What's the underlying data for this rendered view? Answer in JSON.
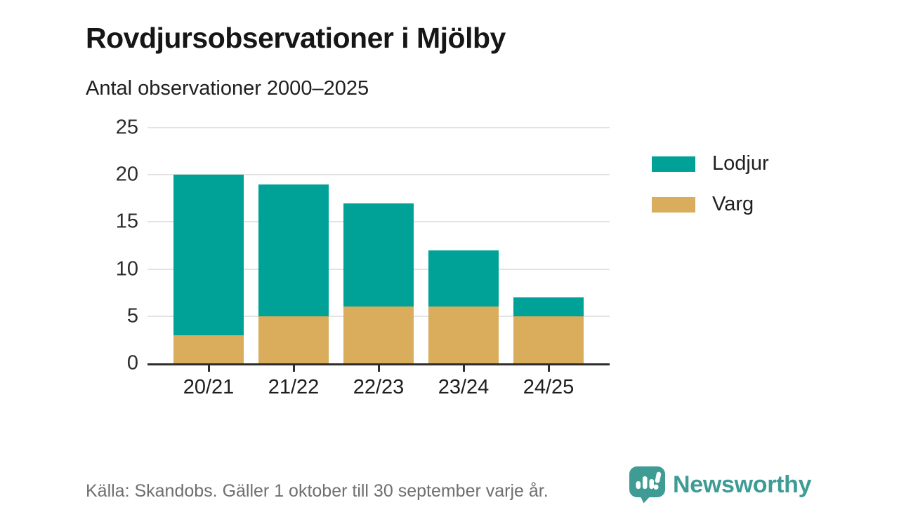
{
  "header": {
    "title": "Rovdjursobservationer i Mjölby",
    "subtitle": "Antal observationer 2000–2025"
  },
  "chart_data": {
    "type": "bar",
    "stacked": true,
    "title": "Rovdjursobservationer i Mjölby",
    "subtitle": "Antal observationer 2000–2025",
    "categories": [
      "20/21",
      "21/22",
      "22/23",
      "23/24",
      "24/25"
    ],
    "series": [
      {
        "name": "Lodjur",
        "color": "#00A298",
        "values": [
          17,
          14,
          11,
          6,
          2
        ]
      },
      {
        "name": "Varg",
        "color": "#D9AD5C",
        "values": [
          3,
          5,
          6,
          6,
          5
        ]
      }
    ],
    "stack_totals": [
      20,
      19,
      17,
      12,
      7
    ],
    "xlabel": "",
    "ylabel": "",
    "ylim": [
      0,
      25
    ],
    "yticks": [
      0,
      5,
      10,
      15,
      20,
      25
    ],
    "grid": true,
    "legend_position": "right",
    "stack_order_bottom_to_top": [
      "Varg",
      "Lodjur"
    ]
  },
  "footer": {
    "source": "Källa: Skandobs. Gäller 1 oktober till 30 september varje år.",
    "brand": "Newsworthy"
  },
  "colors": {
    "lodjur": "#00A298",
    "varg": "#D9AD5C",
    "axis": "#2d2d2d",
    "gridline": "#e3e3e3",
    "footer_text": "#6f6f6f",
    "brand_teal": "#3E9C95",
    "background": "#ffffff"
  }
}
